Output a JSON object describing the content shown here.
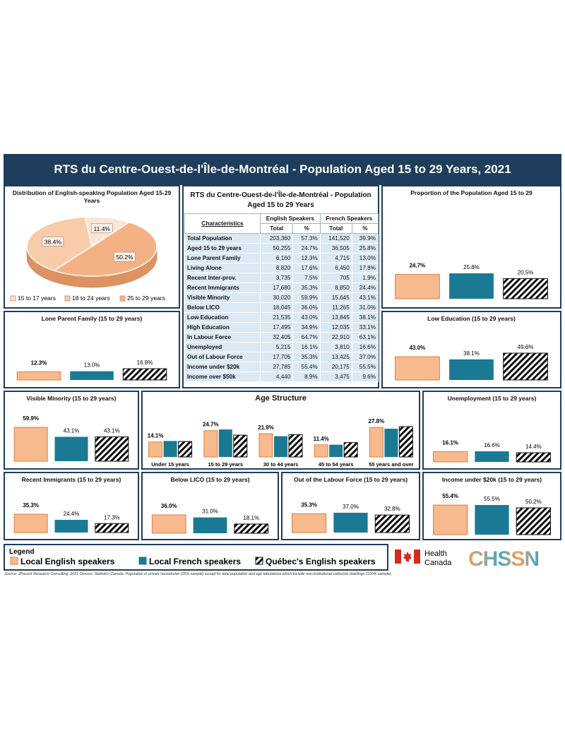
{
  "title": "RTS du Centre-Ouest-de-l'Île-de-Montréal - Population Aged 15 to 29 Years, 2021",
  "legend": {
    "title": "Legend",
    "items": [
      {
        "name": "Local English speakers",
        "color": "#f7b98e"
      },
      {
        "name": "Local French speakers",
        "color": "#1a7a94"
      },
      {
        "name": "Québec's English speakers",
        "color": "hatch"
      }
    ]
  },
  "chart_data": [
    {
      "type": "pie",
      "title": "Distribution of English-speaking Population Aged 15-29 Years",
      "categories": [
        "15 to 17 years",
        "18 to 24 years",
        "25 to 29 years"
      ],
      "values": [
        11.4,
        38.4,
        50.2
      ],
      "value_labels": [
        "11.4%",
        "38.4%",
        "50.2%"
      ],
      "colors": [
        "#fbe4d5",
        "#f8cba9",
        "#f4b183"
      ]
    },
    {
      "type": "bar",
      "title": "Proportion of the Population Aged 15 to 29",
      "values": [
        24.7,
        25.8,
        20.5
      ],
      "value_labels": [
        "24.7%",
        "25.8%",
        "20.5%"
      ]
    },
    {
      "type": "bar",
      "title": "Lone Parent Family (15 to 29 years)",
      "values": [
        12.3,
        13.0,
        16.8
      ],
      "value_labels": [
        "12.3%",
        "13.0%",
        "16.8%"
      ]
    },
    {
      "type": "bar",
      "title": "Low Education (15 to 29 years)",
      "values": [
        43.0,
        38.1,
        49.6
      ],
      "value_labels": [
        "43.0%",
        "38.1%",
        "49.6%"
      ]
    },
    {
      "type": "bar",
      "title": "Visible Minority (15 to 29 years)",
      "values": [
        59.9,
        43.1,
        43.1
      ],
      "value_labels": [
        "59.9%",
        "43.1%",
        "43.1%"
      ]
    },
    {
      "type": "grouped_bar",
      "title": "Age Structure",
      "categories": [
        "Under 15 years",
        "15 to 29 years",
        "30 to 44 years",
        "45 to 54 years",
        "55 years and over"
      ],
      "series": [
        {
          "values": [
            14.1,
            24.7,
            21.9,
            11.4,
            27.8
          ],
          "value_labels": [
            "14.1%",
            "24.7%",
            "21.9%",
            "11.4%",
            "27.8%"
          ]
        },
        {
          "values": [
            15.0,
            25.8,
            19.5,
            11.5,
            26.5
          ]
        },
        {
          "values": [
            14.5,
            20.5,
            21.0,
            13.5,
            28.5
          ]
        }
      ]
    },
    {
      "type": "bar",
      "title": "Unemployment (15 to 29 years)",
      "values": [
        16.1,
        16.6,
        14.4
      ],
      "value_labels": [
        "16.1%",
        "16.6%",
        "14.4%"
      ]
    },
    {
      "type": "bar",
      "title": "Recent Immigrants (15 to 29 years)",
      "values": [
        35.3,
        24.4,
        17.3
      ],
      "value_labels": [
        "35.3%",
        "24.4%",
        "17.3%"
      ]
    },
    {
      "type": "bar",
      "title": "Below LICO (15 to 29 years)",
      "values": [
        36.0,
        31.0,
        18.1
      ],
      "value_labels": [
        "36.0%",
        "31.0%",
        "18.1%"
      ]
    },
    {
      "type": "bar",
      "title": "Out of the Labour Force (15 to 29 years)",
      "values": [
        35.3,
        37.0,
        32.8
      ],
      "value_labels": [
        "35.3%",
        "37.0%",
        "32.8%"
      ]
    },
    {
      "type": "bar",
      "title": "Income under $20k (15 to 29 years)",
      "values": [
        55.4,
        55.5,
        50.2
      ],
      "value_labels": [
        "55.4%",
        "55.5%",
        "50.2%"
      ]
    }
  ],
  "table": {
    "title": "RTS du Centre-Ouest-de-l'Île-de-Montréal - Population Aged 15 to 29 Years",
    "header": [
      "Characteristics",
      "English Speakers",
      "French Speakers"
    ],
    "subheader": [
      "Total",
      "%",
      "Total",
      "%"
    ],
    "rows": [
      [
        "Total Population",
        "203,360",
        "57.3%",
        "141,520",
        "39.9%"
      ],
      [
        "Aged 15 to 29 years",
        "50,255",
        "24.7%",
        "36,505",
        "25.8%"
      ],
      [
        "Lone Parent Family",
        "6,160",
        "12.3%",
        "4,715",
        "13.0%"
      ],
      [
        "Living Alone",
        "8,820",
        "17.6%",
        "6,450",
        "17.8%"
      ],
      [
        "Recent Inter-prov.",
        "3,735",
        "7.5%",
        "705",
        "1.9%"
      ],
      [
        "Recent Immigrants",
        "17,680",
        "35.3%",
        "8,850",
        "24.4%"
      ],
      [
        "Visible Minority",
        "30,020",
        "59.9%",
        "15,645",
        "43.1%"
      ],
      [
        "Below LICO",
        "18,045",
        "36.0%",
        "11,265",
        "31.0%"
      ],
      [
        "Low Education",
        "21,535",
        "43.0%",
        "13,845",
        "38.1%"
      ],
      [
        "High Education",
        "17,495",
        "34.9%",
        "12,035",
        "33.1%"
      ],
      [
        "In Labour Force",
        "32,405",
        "64.7%",
        "22,910",
        "63.1%"
      ],
      [
        "Unemployed",
        "5,215",
        "16.1%",
        "3,810",
        "16.6%"
      ],
      [
        "Out of Labour Force",
        "17,705",
        "35.3%",
        "13,425",
        "37.0%"
      ],
      [
        "Income under $20k",
        "27,785",
        "55.4%",
        "20,175",
        "55.5%"
      ],
      [
        "Income over $50k",
        "4,440",
        "8.9%",
        "3,475",
        "9.6%"
      ]
    ]
  },
  "logos": {
    "health_canada": [
      "Health",
      "Canada"
    ],
    "chssn": "CHSSN"
  },
  "source": "Source: JPocock Research Consulting. 2021 Census. Statistics Canada. Population in private households (25% sample) except for total population and age tabulations which include non-institutional collective dwellings (100% sample)."
}
